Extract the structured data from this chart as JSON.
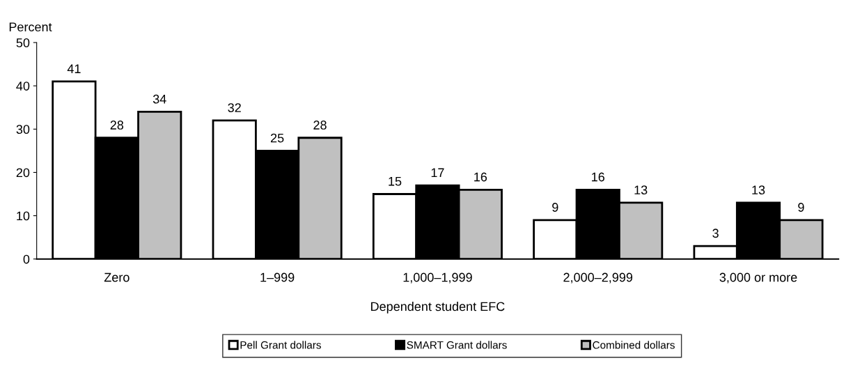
{
  "chart_data": {
    "type": "bar",
    "ylabel": "Percent",
    "xlabel": "Dependent student EFC",
    "categories": [
      "Zero",
      "1–999",
      "1,000–1,999",
      "2,000–2,999",
      "3,000 or more"
    ],
    "series": [
      {
        "name": "Pell Grant dollars",
        "color": "#ffffff",
        "values": [
          41,
          32,
          15,
          9,
          3
        ]
      },
      {
        "name": "SMART Grant dollars",
        "color": "#000000",
        "values": [
          28,
          25,
          17,
          16,
          13
        ]
      },
      {
        "name": "Combined dollars",
        "color": "#c0c0c0",
        "values": [
          34,
          28,
          16,
          13,
          9
        ]
      }
    ],
    "ylim": [
      0,
      50
    ],
    "yticks": [
      0,
      10,
      20,
      30,
      40,
      50
    ],
    "data_labels": true,
    "grid": false,
    "legend": "bottom"
  }
}
